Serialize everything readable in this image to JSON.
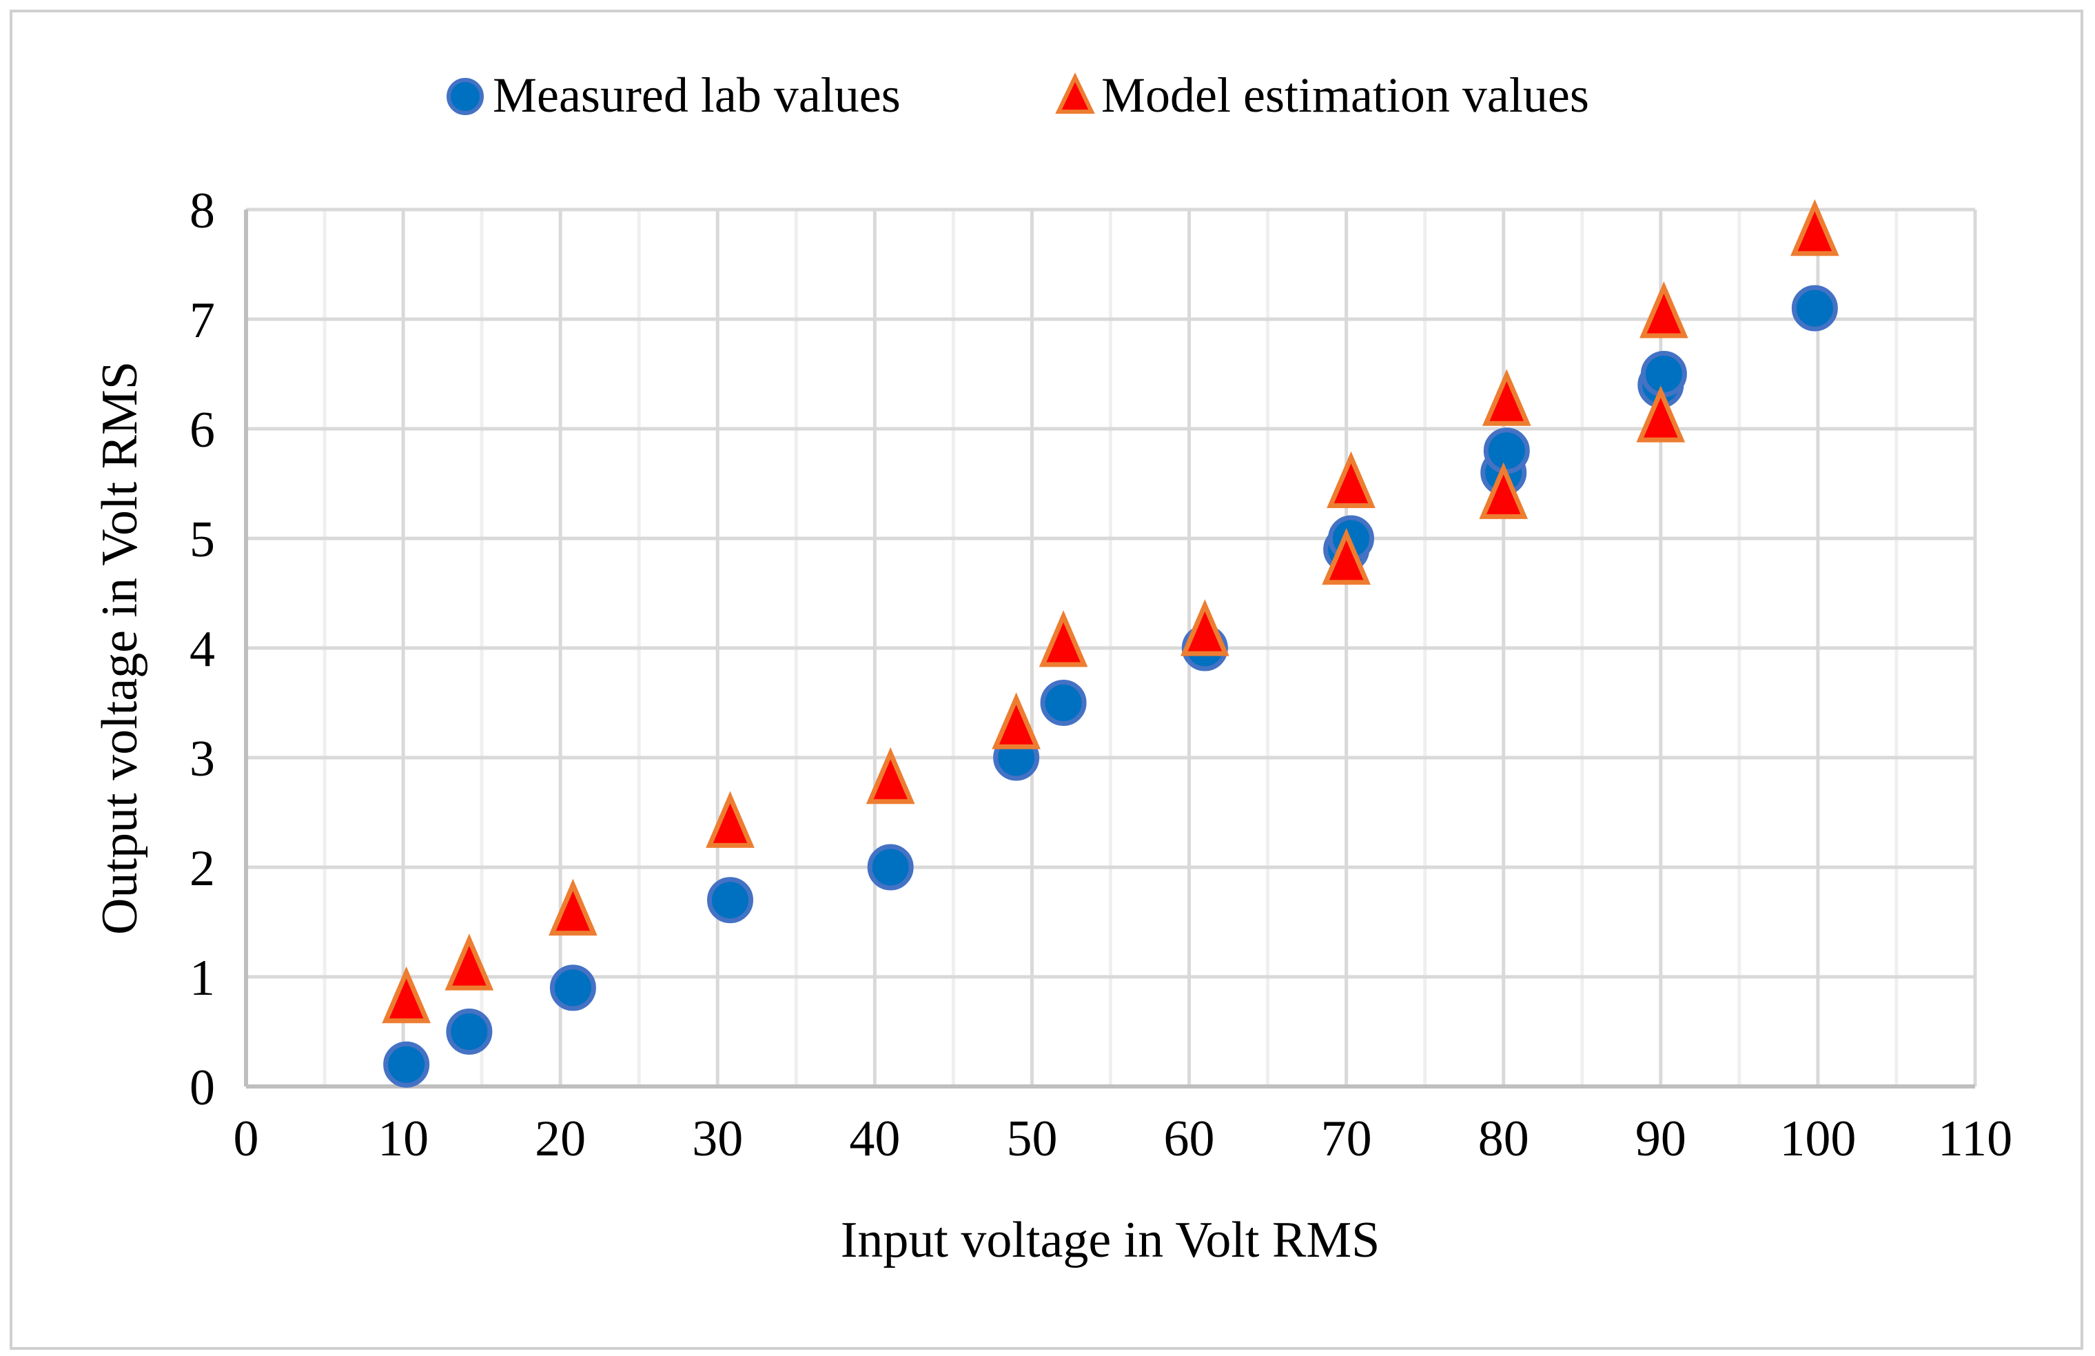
{
  "chart_data": {
    "type": "scatter",
    "title": "",
    "xlabel": "Input voltage in Volt RMS",
    "ylabel": "Output voltage in Volt RMS",
    "xlim": [
      0,
      110
    ],
    "ylim": [
      0,
      8
    ],
    "xticks": [
      "0",
      "10",
      "20",
      "30",
      "40",
      "50",
      "60",
      "70",
      "80",
      "90",
      "100",
      "110"
    ],
    "yticks": [
      "0",
      "1",
      "2",
      "3",
      "4",
      "5",
      "6",
      "7",
      "8"
    ],
    "grid": true,
    "legend_position": "top-center",
    "series": [
      {
        "name": "Measured lab values",
        "marker": "circle",
        "fill": "#0070C0",
        "stroke": "#4472C4",
        "x": [
          10.2,
          14.2,
          20.8,
          30.8,
          41,
          49,
          52,
          61,
          70,
          70.3,
          80,
          80.2,
          90,
          90.2,
          99.8
        ],
        "y": [
          0.2,
          0.5,
          0.9,
          1.7,
          2.0,
          3.0,
          3.5,
          4.0,
          4.9,
          5.0,
          5.6,
          5.8,
          6.4,
          6.5,
          7.1
        ]
      },
      {
        "name": "Model estimation values",
        "marker": "triangle",
        "fill": "#FF0000",
        "stroke": "#ED7D31",
        "x": [
          10.2,
          14.2,
          20.8,
          30.8,
          41,
          49,
          52,
          61,
          70,
          70.3,
          80,
          80.2,
          90,
          90.2,
          99.8
        ],
        "y": [
          0.8,
          1.1,
          1.6,
          2.4,
          2.8,
          3.3,
          4.05,
          4.15,
          4.8,
          5.5,
          5.4,
          6.25,
          6.1,
          7.05,
          7.8
        ]
      }
    ]
  }
}
